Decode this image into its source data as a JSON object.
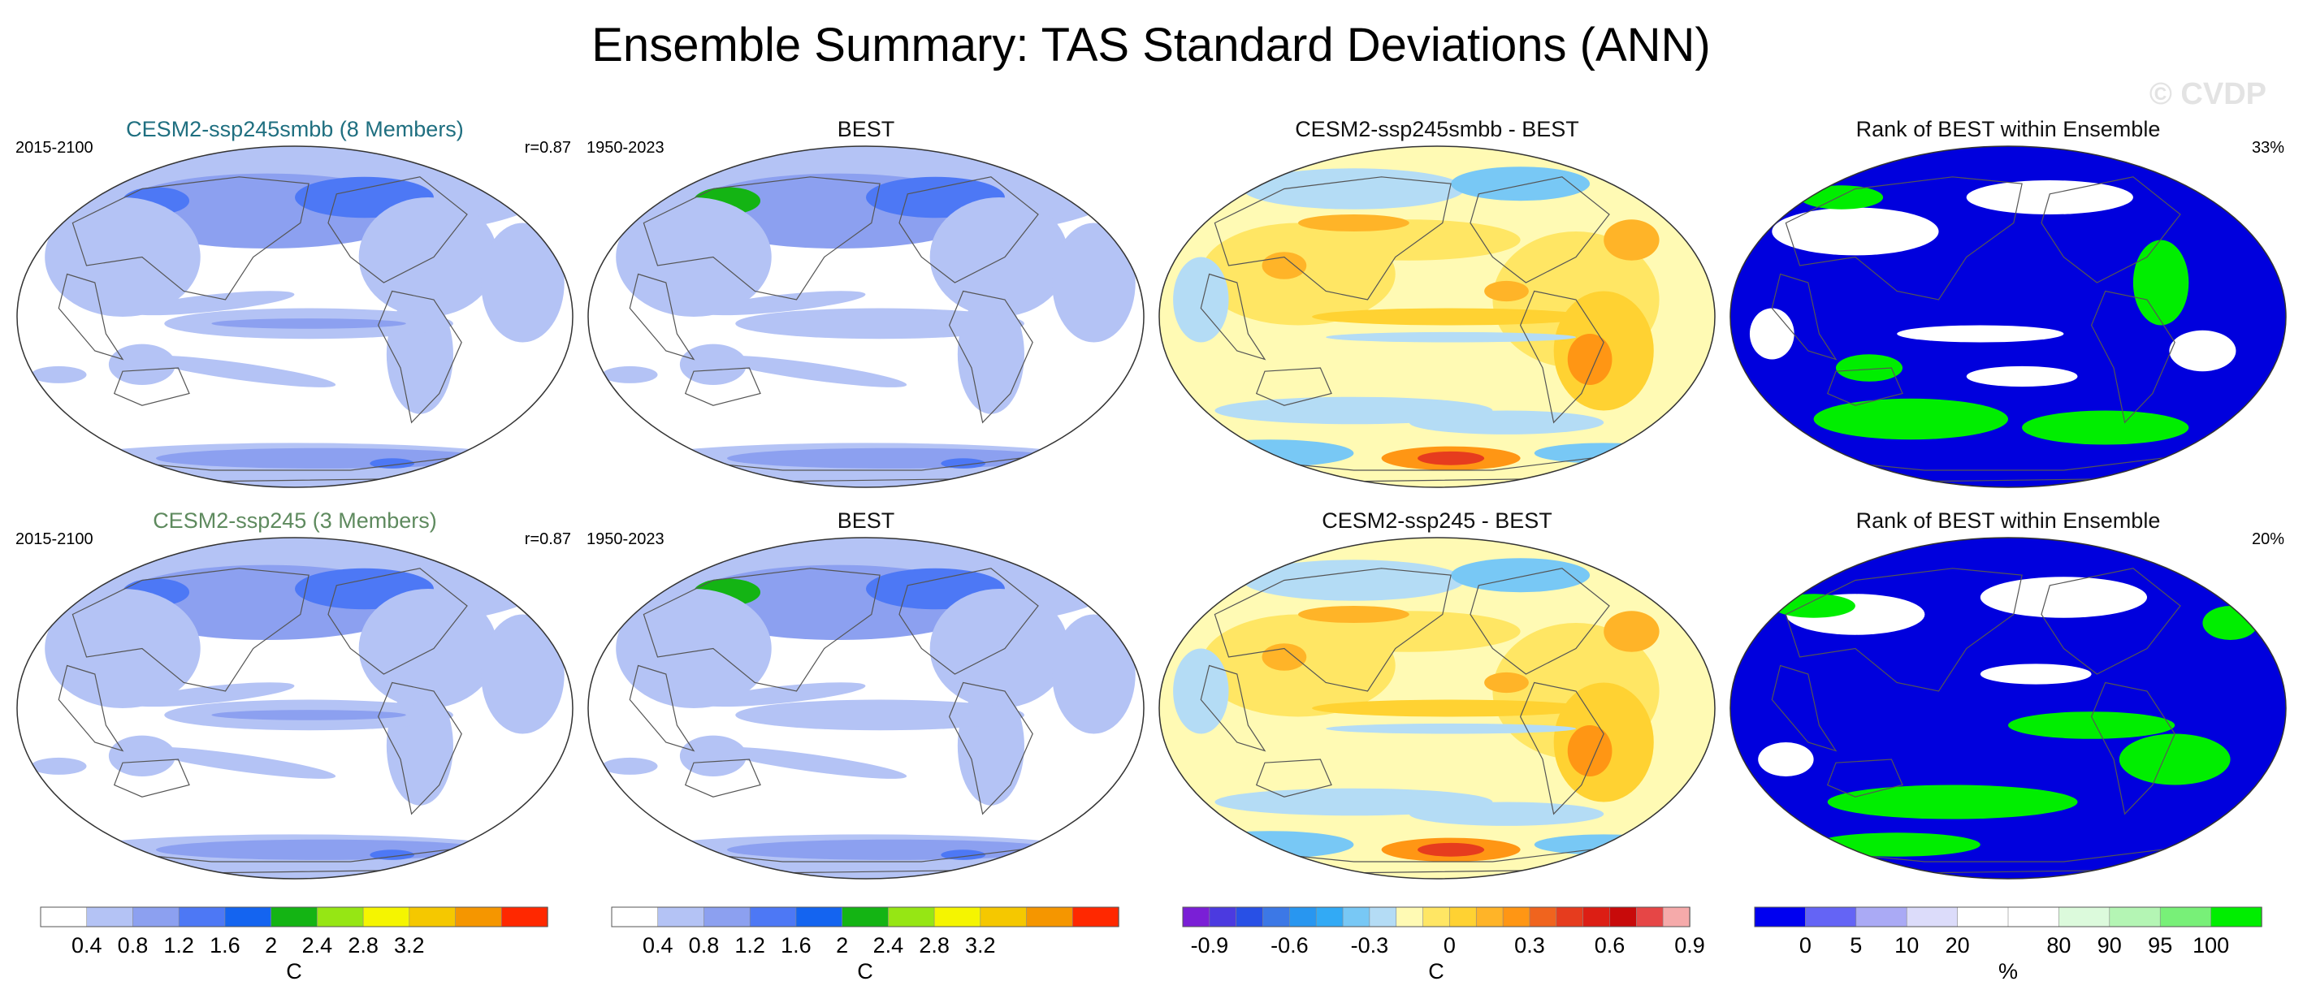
{
  "title": "Ensemble Summary: TAS Standard Deviations (ANN)",
  "watermark": "© CVDP",
  "colors": {
    "ocean_blue": "#0000dd",
    "green": "#00ee00",
    "coast": "#555555"
  },
  "chart_data": [
    {
      "type": "map",
      "title": "CESM2-ssp245smbb (8 Members)",
      "title_color": "#1f6f80",
      "left_label": "2015-2100",
      "right_label": "r=0.87",
      "style": "stddev"
    },
    {
      "type": "map",
      "title": "BEST",
      "title_color": "#111111",
      "left_label": "1950-2023",
      "right_label": "",
      "style": "stddev_obs"
    },
    {
      "type": "map",
      "title": "CESM2-ssp245smbb - BEST",
      "title_color": "#111111",
      "left_label": "",
      "right_label": "",
      "style": "diff"
    },
    {
      "type": "map",
      "title": "Rank of BEST within Ensemble",
      "title_color": "#111111",
      "left_label": "",
      "right_label": "33%",
      "style": "rank"
    },
    {
      "type": "map",
      "title": "CESM2-ssp245 (3 Members)",
      "title_color": "#5e8a5e",
      "left_label": "2015-2100",
      "right_label": "r=0.87",
      "style": "stddev"
    },
    {
      "type": "map",
      "title": "BEST",
      "title_color": "#111111",
      "left_label": "1950-2023",
      "right_label": "",
      "style": "stddev_obs"
    },
    {
      "type": "map",
      "title": "CESM2-ssp245 - BEST",
      "title_color": "#111111",
      "left_label": "",
      "right_label": "",
      "style": "diff"
    },
    {
      "type": "map",
      "title": "Rank of BEST within Ensemble",
      "title_color": "#111111",
      "left_label": "",
      "right_label": "20%",
      "style": "rank2"
    }
  ],
  "colorbars": [
    {
      "label": "C",
      "colors": [
        "#ffffff",
        "#b4c3f5",
        "#8ca0f0",
        "#4d78f5",
        "#1464f0",
        "#14b414",
        "#96e614",
        "#f5f500",
        "#f5c800",
        "#f59600",
        "#ff2800"
      ],
      "ticks": [
        "0.4",
        "0.8",
        "1.2",
        "1.6",
        "2",
        "2.4",
        "2.8",
        "3.2"
      ]
    },
    {
      "label": "C",
      "colors": [
        "#ffffff",
        "#b4c3f5",
        "#8ca0f0",
        "#4d78f5",
        "#1464f0",
        "#14b414",
        "#96e614",
        "#f5f500",
        "#f5c800",
        "#f59600",
        "#ff2800"
      ],
      "ticks": [
        "0.4",
        "0.8",
        "1.2",
        "1.6",
        "2",
        "2.4",
        "2.8",
        "3.2"
      ]
    },
    {
      "label": "C",
      "colors": [
        "#7a1fd6",
        "#4b3ae0",
        "#2850e6",
        "#3c78e6",
        "#2896f0",
        "#32aaf5",
        "#78c8f5",
        "#b4dcf5",
        "#fffab4",
        "#ffe664",
        "#ffd232",
        "#ffb428",
        "#ff9614",
        "#f0641e",
        "#e63c1e",
        "#dc1e14",
        "#c80a0a",
        "#e64646",
        "#f5aaaa"
      ],
      "ticks": [
        "-0.9",
        "-0.6",
        "-0.3",
        "0",
        "0.3",
        "0.6",
        "0.9"
      ]
    },
    {
      "label": "%",
      "colors": [
        "#0000f0",
        "#6464f5",
        "#aaaaf5",
        "#dcdcfa",
        "#ffffff",
        "#ffffff",
        "#dcfadc",
        "#b4f5b4",
        "#78f078",
        "#00ee00"
      ],
      "ticks": [
        "0",
        "5",
        "10",
        "20",
        "80",
        "90",
        "95",
        "100"
      ]
    }
  ]
}
